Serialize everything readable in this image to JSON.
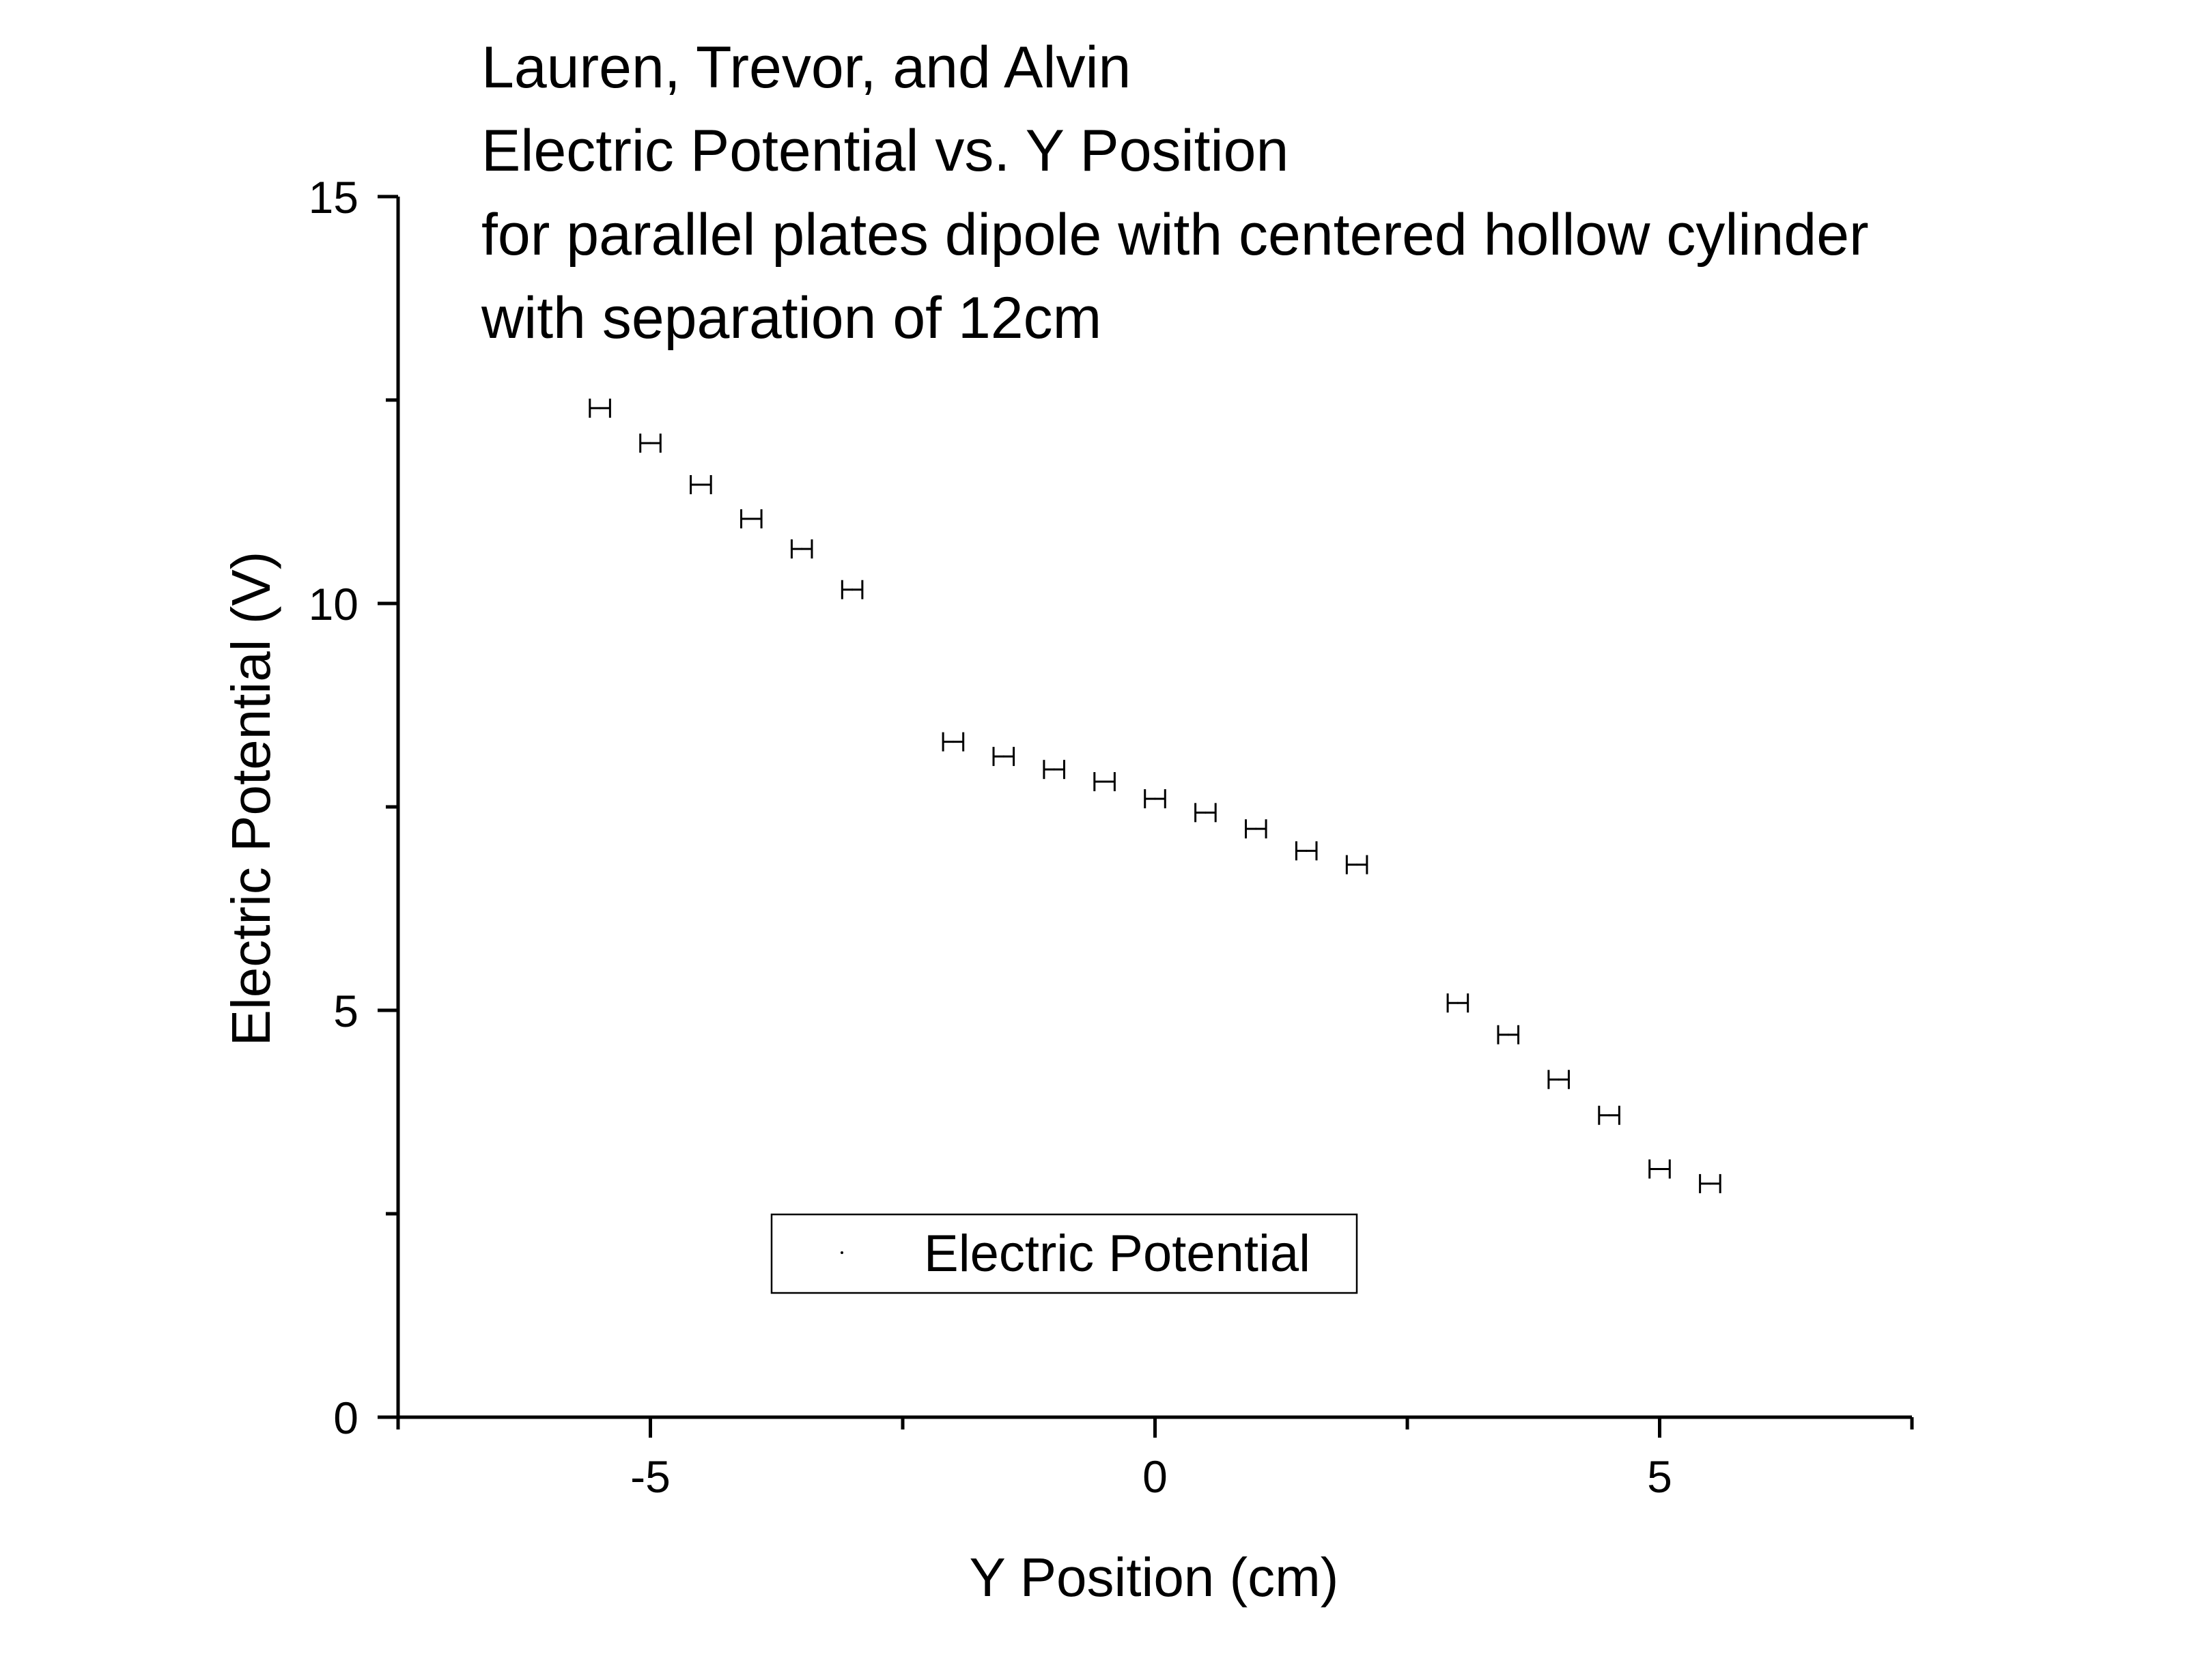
{
  "chart_data": {
    "type": "scatter",
    "title_lines": [
      "Lauren, Trevor, and Alvin",
      "Electric Potential vs. Y Position",
      "for parallel plates dipole with centered hollow cylinder",
      "with separation of 12cm"
    ],
    "xlabel": "Y Position (cm)",
    "ylabel": "Electric Potential (V)",
    "xlim": [
      -7.5,
      7.5
    ],
    "ylim": [
      0,
      15
    ],
    "x_ticks": [
      -5,
      0,
      5
    ],
    "x_tick_labels": [
      "-5",
      "0",
      "5"
    ],
    "x_minor_ticks": [
      -7.5,
      -2.5,
      2.5,
      7.5
    ],
    "y_ticks": [
      0,
      5,
      10,
      15
    ],
    "y_tick_labels": [
      "0",
      "5",
      "10",
      "15"
    ],
    "y_minor_ticks": [
      2.5,
      7.5,
      12.5
    ],
    "error_bar_style": "horizontal",
    "x_error": 0.1,
    "legend_position": "bottom-center",
    "grid": false,
    "series": [
      {
        "name": "Electric Potential",
        "color": "#000000",
        "points": [
          {
            "x": -5.5,
            "y": 12.4
          },
          {
            "x": -5.0,
            "y": 11.97
          },
          {
            "x": -4.5,
            "y": 11.46
          },
          {
            "x": -4.0,
            "y": 11.04
          },
          {
            "x": -3.5,
            "y": 10.67
          },
          {
            "x": -3.0,
            "y": 10.17
          },
          {
            "x": -2.0,
            "y": 8.3
          },
          {
            "x": -1.5,
            "y": 8.12
          },
          {
            "x": -1.0,
            "y": 7.96
          },
          {
            "x": -0.5,
            "y": 7.81
          },
          {
            "x": 0.0,
            "y": 7.6
          },
          {
            "x": 0.5,
            "y": 7.43
          },
          {
            "x": 1.0,
            "y": 7.23
          },
          {
            "x": 1.5,
            "y": 6.96
          },
          {
            "x": 2.0,
            "y": 6.79
          },
          {
            "x": 3.0,
            "y": 5.09
          },
          {
            "x": 3.5,
            "y": 4.7
          },
          {
            "x": 4.0,
            "y": 4.15
          },
          {
            "x": 4.5,
            "y": 3.71
          },
          {
            "x": 5.0,
            "y": 3.05
          },
          {
            "x": 5.5,
            "y": 2.87
          }
        ]
      }
    ]
  }
}
